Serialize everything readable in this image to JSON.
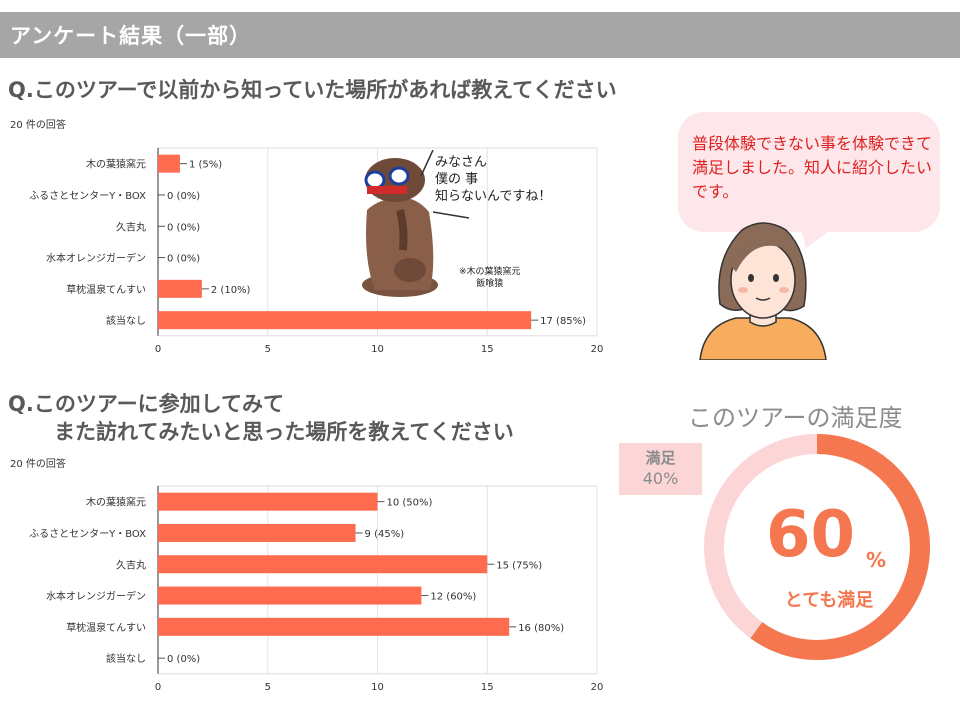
{
  "header": {
    "title": "アンケート結果（一部）"
  },
  "q1": {
    "text": "Q.このツアーで以前から知っていた場所があれば教えてください",
    "response_count": "20 件の回答"
  },
  "q2": {
    "line1": "Q.このツアーに参加してみて",
    "line2": "また訪れてみたいと思った場所を教えてください",
    "response_count": "20 件の回答"
  },
  "monkey": {
    "speech": "みなさん\n僕の 事\n知らないんですね！",
    "note": "※木の葉猿窯元\n飯喰猿"
  },
  "comment": {
    "text": "普段体験できない事を体験できて満足しました。知人に紹介したいです。"
  },
  "satisfaction": {
    "title": "このツアーの満足度",
    "satisfied_label": "満足",
    "satisfied_pct": "40%",
    "very_satisfied_value": "60",
    "very_satisfied_unit": "%",
    "very_satisfied_label": "とても満足"
  },
  "colors": {
    "bar": "#ff6b4f",
    "ring_main": "#f4774f",
    "ring_light": "#fcd6d7",
    "header": "#a6a6a6"
  },
  "icons": {
    "person": "woman-avatar-icon",
    "figure": "monkey-figurine-icon"
  },
  "chart_data": [
    {
      "type": "bar",
      "orientation": "horizontal",
      "categories": [
        "木の葉猿窯元",
        "ふるさとセンターY・BOX",
        "久吉丸",
        "水本オレンジガーデン",
        "草枕温泉てんすい",
        "該当なし"
      ],
      "values": [
        1,
        0,
        0,
        0,
        2,
        17
      ],
      "labels": [
        "1 (5%)",
        "0 (0%)",
        "0 (0%)",
        "0 (0%)",
        "2 (10%)",
        "17 (85%)"
      ],
      "xlim": [
        0,
        20
      ],
      "ticks": [
        "0",
        "5",
        "10",
        "15",
        "20"
      ],
      "grid": true
    },
    {
      "type": "bar",
      "orientation": "horizontal",
      "categories": [
        "木の葉猿窯元",
        "ふるさとセンターY・BOX",
        "久吉丸",
        "水本オレンジガーデン",
        "草枕温泉てんすい",
        "該当なし"
      ],
      "values": [
        10,
        9,
        15,
        12,
        16,
        0
      ],
      "labels": [
        "10 (50%)",
        "9 (45%)",
        "15 (75%)",
        "12 (60%)",
        "16 (80%)",
        "0 (0%)"
      ],
      "xlim": [
        0,
        20
      ],
      "ticks": [
        "0",
        "5",
        "10",
        "15",
        "20"
      ],
      "grid": true
    },
    {
      "type": "pie",
      "style": "donut",
      "categories": [
        "とても満足",
        "満足"
      ],
      "values": [
        60,
        40
      ]
    }
  ]
}
